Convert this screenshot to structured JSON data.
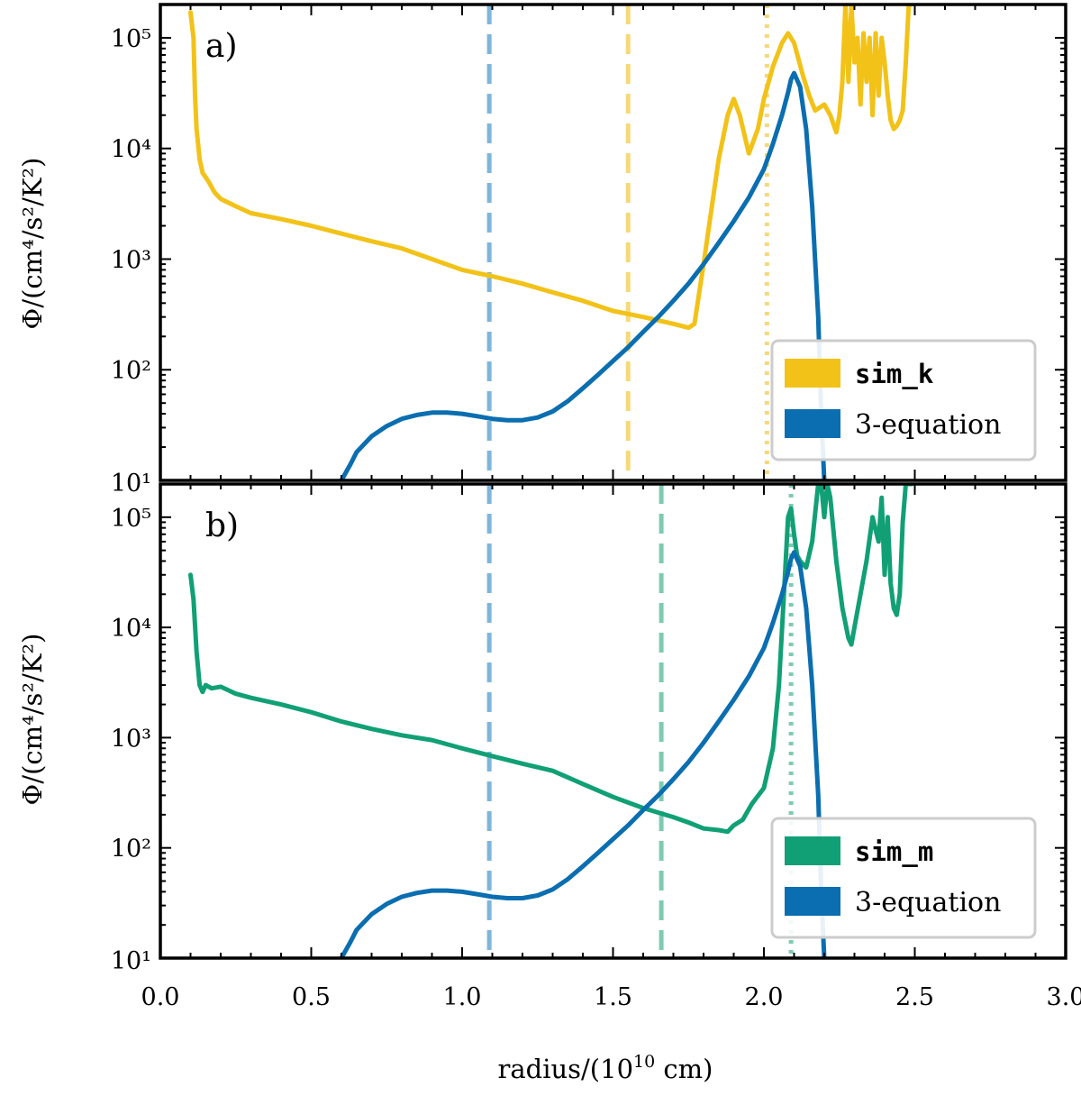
{
  "figure": {
    "xlabel": "radius/(10",
    "xlabel_exp": "10",
    "xlabel_tail": " cm)",
    "ylabel": "Φ/(cm⁴/s²/K²)"
  },
  "colors": {
    "sim_k": "#F2C218",
    "sim_m": "#11A075",
    "three_eq": "#0A6EB0",
    "vline_blue": "#7DB6DC",
    "vline_yellow": "#F5D97A",
    "vline_green": "#7DCBB1"
  },
  "chart_data": [
    {
      "type": "line",
      "panel_label": "a)",
      "xlim": [
        0.0,
        3.0
      ],
      "ylim": [
        10,
        200000
      ],
      "yscale": "log",
      "ytick_labels": [
        "10¹",
        "10²",
        "10³",
        "10⁴",
        "10⁵"
      ],
      "xtick_labels": [
        "0.0",
        "0.5",
        "1.0",
        "1.5",
        "2.0",
        "2.5",
        "3.0"
      ],
      "legend_position": "lower-right",
      "series": [
        {
          "name": "sim_k",
          "color_key": "sim_k",
          "x": [
            0.1,
            0.11,
            0.115,
            0.12,
            0.13,
            0.14,
            0.15,
            0.16,
            0.18,
            0.2,
            0.25,
            0.3,
            0.4,
            0.5,
            0.6,
            0.7,
            0.8,
            0.9,
            1.0,
            1.1,
            1.2,
            1.3,
            1.4,
            1.5,
            1.6,
            1.7,
            1.75,
            1.77,
            1.8,
            1.85,
            1.88,
            1.9,
            1.92,
            1.95,
            1.98,
            2.0,
            2.03,
            2.06,
            2.08,
            2.1,
            2.13,
            2.15,
            2.17,
            2.2,
            2.22,
            2.24,
            2.25,
            2.26,
            2.27,
            2.28,
            2.29,
            2.3,
            2.31,
            2.32,
            2.33,
            2.34,
            2.35,
            2.36,
            2.37,
            2.38,
            2.39,
            2.4,
            2.41,
            2.42,
            2.43,
            2.44,
            2.45,
            2.46,
            2.47,
            2.48,
            2.49
          ],
          "y": [
            170000,
            100000,
            30000,
            15000,
            8000,
            6000,
            5500,
            5000,
            4000,
            3500,
            3000,
            2600,
            2300,
            2000,
            1700,
            1450,
            1250,
            1000,
            800,
            700,
            600,
            500,
            420,
            340,
            300,
            260,
            240,
            260,
            900,
            8000,
            20000,
            28000,
            20000,
            9000,
            15000,
            28000,
            55000,
            90000,
            110000,
            90000,
            45000,
            30000,
            22000,
            25000,
            20000,
            14000,
            20000,
            40000,
            200000,
            40000,
            200000,
            60000,
            100000,
            25000,
            110000,
            40000,
            100000,
            20000,
            110000,
            30000,
            100000,
            60000,
            30000,
            18000,
            15000,
            16000,
            18000,
            22000,
            60000,
            200000,
            200000
          ]
        },
        {
          "name": "3-equation",
          "color_key": "three_eq",
          "x": [
            0.6,
            0.63,
            0.65,
            0.7,
            0.75,
            0.8,
            0.85,
            0.9,
            0.95,
            1.0,
            1.05,
            1.1,
            1.15,
            1.2,
            1.25,
            1.3,
            1.35,
            1.4,
            1.45,
            1.5,
            1.55,
            1.6,
            1.65,
            1.7,
            1.75,
            1.8,
            1.85,
            1.9,
            1.95,
            2.0,
            2.03,
            2.06,
            2.08,
            2.09,
            2.1,
            2.12,
            2.14,
            2.16,
            2.18,
            2.19,
            2.2
          ],
          "y": [
            10,
            14,
            18,
            25,
            31,
            36,
            39,
            41,
            41,
            40,
            38,
            36,
            35,
            35,
            37,
            42,
            52,
            68,
            90,
            120,
            160,
            220,
            300,
            420,
            600,
            900,
            1400,
            2200,
            3600,
            6500,
            11000,
            20000,
            32000,
            42000,
            48000,
            36000,
            15000,
            3000,
            300,
            40,
            10
          ]
        }
      ],
      "vlines": [
        {
          "x": 1.09,
          "style": "dashed",
          "color_key": "vline_blue"
        },
        {
          "x": 1.55,
          "style": "dashed",
          "color_key": "vline_yellow"
        },
        {
          "x": 2.01,
          "style": "dotted",
          "color_key": "vline_yellow"
        }
      ]
    },
    {
      "type": "line",
      "panel_label": "b)",
      "xlim": [
        0.0,
        3.0
      ],
      "ylim": [
        10,
        200000
      ],
      "yscale": "log",
      "ytick_labels": [
        "10¹",
        "10²",
        "10³",
        "10⁴",
        "10⁵"
      ],
      "xtick_labels": [
        "0.0",
        "0.5",
        "1.0",
        "1.5",
        "2.0",
        "2.5",
        "3.0"
      ],
      "legend_position": "lower-right",
      "series": [
        {
          "name": "sim_m",
          "color_key": "sim_m",
          "x": [
            0.1,
            0.11,
            0.12,
            0.13,
            0.14,
            0.15,
            0.17,
            0.2,
            0.25,
            0.3,
            0.4,
            0.5,
            0.6,
            0.7,
            0.8,
            0.9,
            1.0,
            1.1,
            1.2,
            1.3,
            1.4,
            1.5,
            1.6,
            1.7,
            1.75,
            1.8,
            1.85,
            1.88,
            1.9,
            1.93,
            1.96,
            2.0,
            2.03,
            2.05,
            2.07,
            2.08,
            2.09,
            2.1,
            2.11,
            2.12,
            2.14,
            2.16,
            2.18,
            2.19,
            2.2,
            2.21,
            2.22,
            2.24,
            2.26,
            2.28,
            2.29,
            2.3,
            2.32,
            2.34,
            2.36,
            2.38,
            2.39,
            2.4,
            2.41,
            2.42,
            2.43,
            2.44,
            2.45,
            2.46,
            2.47,
            2.48,
            2.49
          ],
          "y": [
            30000,
            18000,
            6000,
            3000,
            2600,
            3000,
            2800,
            2900,
            2500,
            2300,
            2000,
            1700,
            1400,
            1200,
            1050,
            950,
            800,
            680,
            580,
            500,
            380,
            290,
            230,
            190,
            170,
            150,
            145,
            140,
            160,
            180,
            250,
            350,
            800,
            3000,
            30000,
            100000,
            120000,
            70000,
            45000,
            40000,
            35000,
            60000,
            200000,
            200000,
            100000,
            200000,
            150000,
            40000,
            15000,
            8000,
            7000,
            10000,
            20000,
            40000,
            100000,
            60000,
            150000,
            30000,
            100000,
            25000,
            15000,
            13000,
            20000,
            90000,
            200000,
            200000,
            200000
          ]
        },
        {
          "name": "3-equation",
          "color_key": "three_eq",
          "x": [
            0.6,
            0.63,
            0.65,
            0.7,
            0.75,
            0.8,
            0.85,
            0.9,
            0.95,
            1.0,
            1.05,
            1.1,
            1.15,
            1.2,
            1.25,
            1.3,
            1.35,
            1.4,
            1.45,
            1.5,
            1.55,
            1.6,
            1.65,
            1.7,
            1.75,
            1.8,
            1.85,
            1.9,
            1.95,
            2.0,
            2.03,
            2.06,
            2.08,
            2.09,
            2.1,
            2.12,
            2.14,
            2.16,
            2.18,
            2.19,
            2.2
          ],
          "y": [
            10,
            14,
            18,
            25,
            31,
            36,
            39,
            41,
            41,
            40,
            38,
            36,
            35,
            35,
            37,
            42,
            52,
            68,
            90,
            120,
            160,
            220,
            300,
            420,
            600,
            900,
            1400,
            2200,
            3600,
            6500,
            11000,
            20000,
            32000,
            42000,
            48000,
            36000,
            15000,
            3000,
            300,
            40,
            10
          ]
        }
      ],
      "vlines": [
        {
          "x": 1.09,
          "style": "dashed",
          "color_key": "vline_blue"
        },
        {
          "x": 1.66,
          "style": "dashed",
          "color_key": "vline_green"
        },
        {
          "x": 2.09,
          "style": "dotted",
          "color_key": "vline_green"
        }
      ]
    }
  ]
}
